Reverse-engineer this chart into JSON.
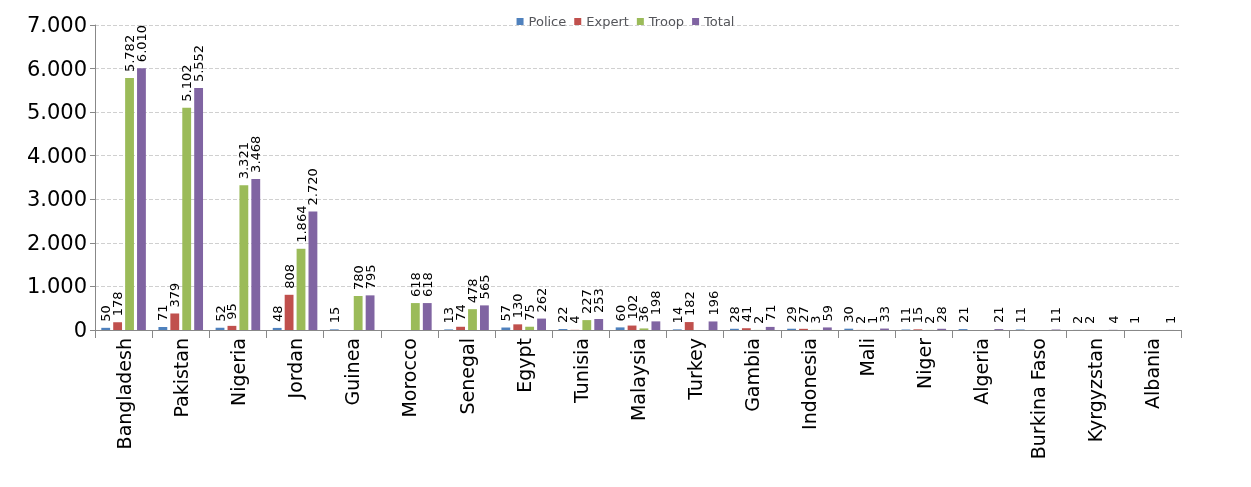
{
  "chart_data": {
    "type": "bar",
    "categories": [
      "Bangladesh",
      "Pakistan",
      "Nigeria",
      "Jordan",
      "Guinea",
      "Morocco",
      "Senegal",
      "Egypt",
      "Tunisia",
      "Malaysia",
      "Turkey",
      "Gambia",
      "Indonesia",
      "Mali",
      "Niger",
      "Algeria",
      "Burkina Faso",
      "Kyrgyzstan",
      "Albania"
    ],
    "series": [
      {
        "name": "Police",
        "color": "#4f81bd",
        "values": [
          50,
          71,
          52,
          48,
          15,
          null,
          13,
          57,
          22,
          60,
          14,
          28,
          29,
          30,
          11,
          21,
          11,
          2,
          1
        ],
        "value_labels": [
          "50",
          "71",
          "52",
          "48",
          "15",
          null,
          "13",
          "57",
          "22",
          "60",
          "14",
          "28",
          "29",
          "30",
          "11",
          "21",
          "11",
          "2",
          "1"
        ]
      },
      {
        "name": "Expert",
        "color": "#c0504d",
        "values": [
          178,
          379,
          95,
          808,
          null,
          null,
          74,
          130,
          4,
          102,
          182,
          41,
          27,
          2,
          15,
          null,
          null,
          2,
          null
        ],
        "value_labels": [
          "178",
          "379",
          "95",
          "808",
          null,
          null,
          "74",
          "130",
          "4",
          "102",
          "182",
          "41",
          "27",
          "2",
          "15",
          null,
          null,
          "2",
          null
        ]
      },
      {
        "name": "Troop",
        "color": "#9bbb59",
        "values": [
          5782,
          5102,
          3321,
          1864,
          780,
          618,
          478,
          75,
          227,
          36,
          null,
          2,
          3,
          1,
          2,
          null,
          null,
          null,
          null
        ],
        "value_labels": [
          "5.782",
          "5.102",
          "3.321",
          "1.864",
          "780",
          "618",
          "478",
          "75",
          "227",
          "36",
          null,
          "2",
          "3",
          "1",
          "2",
          null,
          null,
          null,
          null
        ]
      },
      {
        "name": "Total",
        "color": "#8064a2",
        "values": [
          6010,
          5552,
          3468,
          2720,
          795,
          618,
          565,
          262,
          253,
          198,
          196,
          71,
          59,
          33,
          28,
          21,
          11,
          4,
          1
        ],
        "value_labels": [
          "6.010",
          "5.552",
          "3.468",
          "2.720",
          "795",
          "618",
          "565",
          "262",
          "253",
          "198",
          "196",
          "71",
          "59",
          "33",
          "28",
          "21",
          "11",
          "4",
          "1"
        ]
      }
    ],
    "ylim": [
      0,
      7000
    ],
    "yticks": [
      {
        "value": 0,
        "label": "0"
      },
      {
        "value": 1000,
        "label": "1.000"
      },
      {
        "value": 2000,
        "label": "2.000"
      },
      {
        "value": 3000,
        "label": "3.000"
      },
      {
        "value": 4000,
        "label": "4.000"
      },
      {
        "value": 5000,
        "label": "5.000"
      },
      {
        "value": 6000,
        "label": "6.000"
      },
      {
        "value": 7000,
        "label": "7.000"
      }
    ],
    "grid": "y",
    "legend": "top"
  }
}
